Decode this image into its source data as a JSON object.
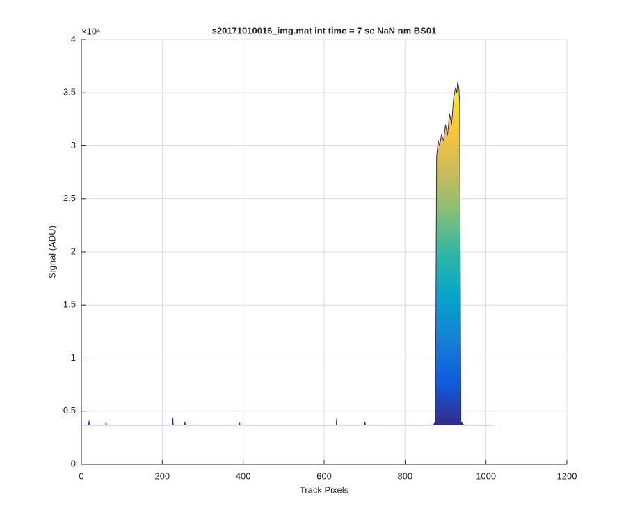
{
  "chart_data": {
    "type": "area",
    "title": "s20171010016_img.mat int time = 7 se  NaN nm BS01",
    "x_label": "Track Pixels",
    "y_label": "Signal (ADU)",
    "y_exponent": "×10⁴",
    "x": [
      0,
      18,
      19,
      20,
      60,
      61,
      62,
      225,
      226,
      227,
      255,
      256,
      257,
      390,
      391,
      392,
      630,
      631,
      632,
      700,
      701,
      702,
      870,
      875,
      878,
      882,
      885,
      890,
      895,
      900,
      905,
      910,
      915,
      920,
      925,
      928,
      930,
      933,
      935,
      938,
      945,
      1000,
      1023
    ],
    "values": [
      0.37,
      0.37,
      0.41,
      0.37,
      0.37,
      0.4,
      0.37,
      0.37,
      0.44,
      0.37,
      0.37,
      0.4,
      0.37,
      0.37,
      0.39,
      0.37,
      0.37,
      0.43,
      0.37,
      0.37,
      0.4,
      0.37,
      0.37,
      0.4,
      2.9,
      3.05,
      3.0,
      3.1,
      3.05,
      3.2,
      3.1,
      3.3,
      3.2,
      3.45,
      3.55,
      3.5,
      3.6,
      3.55,
      3.4,
      0.4,
      0.37,
      0.37,
      0.37
    ],
    "line_color": "#2c2a7a",
    "colormap": [
      "#352a87",
      "#0f5cdd",
      "#1481d6",
      "#06a4ca",
      "#2eb7a4",
      "#87bf77",
      "#d1bb59",
      "#fec832",
      "#f9fb0e"
    ],
    "xlim": [
      0,
      1200
    ],
    "xticks": [
      0,
      200,
      400,
      600,
      800,
      1000,
      1200
    ],
    "ylim": [
      0,
      4
    ],
    "yticks": [
      0,
      0.5,
      1,
      1.5,
      2,
      2.5,
      3,
      3.5,
      4
    ],
    "grid": true
  }
}
